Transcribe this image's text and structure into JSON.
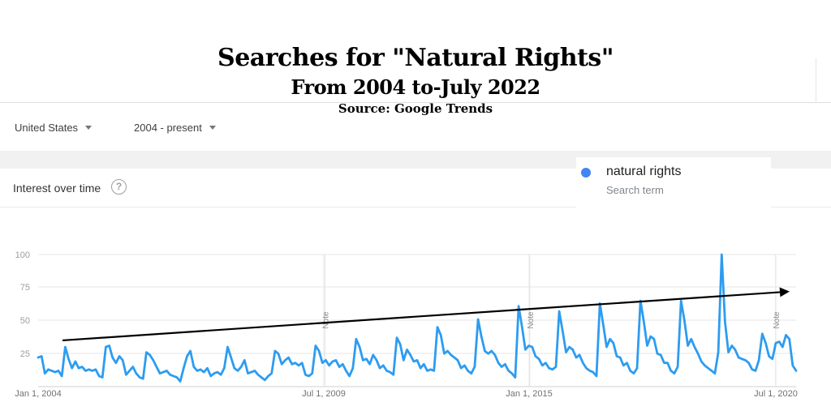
{
  "header": {
    "title": "Searches for \"Natural Rights\"",
    "subtitle": "From 2004 to-July 2022",
    "source": "Source: Google Trends"
  },
  "filters": {
    "region": "United States",
    "period": "2004 - present"
  },
  "card": {
    "title": "Interest over time",
    "help_icon": "?"
  },
  "legend": {
    "term": "natural rights",
    "sublabel": "Search term",
    "color": "#4285f4"
  },
  "colors": {
    "line": "#2d9cf0",
    "trend_arrow": "#000000"
  },
  "chart_data": {
    "type": "line",
    "x_tick_labels": [
      "Jan 1, 2004",
      "Jul 1, 2009",
      "Jan 1, 2015",
      "Jul 1, 2020"
    ],
    "y_ticks": [
      100,
      75,
      50,
      25
    ],
    "ylim": [
      0,
      100
    ],
    "x_start": "2004-01",
    "x_end": "2022-07",
    "note_label": "Note",
    "note_dates": [
      "2011-01",
      "2016-01",
      "2022-01"
    ],
    "trend_arrow": {
      "from": {
        "date": "2004-01",
        "value": 35
      },
      "to": {
        "date": "2022-07",
        "value": 72
      }
    },
    "series": [
      {
        "name": "natural rights",
        "values": [
          22,
          23,
          10,
          13,
          12,
          11,
          12,
          8,
          30,
          21,
          14,
          19,
          14,
          15,
          12,
          13,
          12,
          13,
          8,
          7,
          30,
          31,
          22,
          18,
          23,
          20,
          9,
          12,
          15,
          10,
          7,
          6,
          26,
          24,
          20,
          15,
          10,
          11,
          12,
          9,
          8,
          7,
          4,
          14,
          23,
          27,
          15,
          12,
          13,
          11,
          14,
          8,
          10,
          11,
          9,
          14,
          30,
          22,
          14,
          12,
          15,
          20,
          10,
          11,
          12,
          9,
          7,
          5,
          8,
          10,
          27,
          25,
          17,
          20,
          22,
          17,
          18,
          16,
          18,
          9,
          8,
          10,
          31,
          27,
          18,
          20,
          16,
          19,
          20,
          15,
          17,
          12,
          8,
          14,
          36,
          30,
          20,
          21,
          17,
          24,
          20,
          14,
          16,
          12,
          11,
          9,
          37,
          32,
          20,
          28,
          24,
          19,
          20,
          14,
          17,
          12,
          13,
          12,
          45,
          39,
          25,
          27,
          24,
          22,
          20,
          14,
          16,
          12,
          10,
          15,
          51,
          38,
          27,
          25,
          27,
          24,
          18,
          15,
          17,
          12,
          10,
          7,
          61,
          45,
          28,
          31,
          30,
          23,
          21,
          16,
          18,
          14,
          13,
          15,
          57,
          42,
          26,
          30,
          28,
          22,
          24,
          18,
          14,
          12,
          11,
          8,
          63,
          47,
          30,
          36,
          33,
          23,
          22,
          16,
          18,
          12,
          10,
          14,
          65,
          49,
          31,
          38,
          36,
          25,
          24,
          18,
          18,
          12,
          10,
          15,
          65,
          50,
          31,
          36,
          30,
          25,
          19,
          16,
          14,
          12,
          10,
          26,
          100,
          49,
          26,
          31,
          28,
          22,
          21,
          20,
          18,
          13,
          12,
          20,
          40,
          33,
          23,
          21,
          33,
          34,
          30,
          39,
          36,
          16,
          12
        ]
      }
    ]
  }
}
